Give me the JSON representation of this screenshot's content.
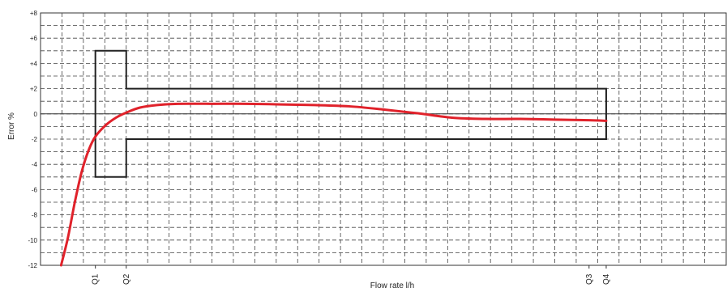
{
  "chart_data": {
    "type": "line",
    "title": "",
    "xlabel": "Flow rate l/h",
    "ylabel": "Error %",
    "ylim": [
      -12,
      8
    ],
    "yticks": [
      {
        "value": 8,
        "label": "+8"
      },
      {
        "value": 6,
        "label": "+6"
      },
      {
        "value": 4,
        "label": "+4"
      },
      {
        "value": 2,
        "label": "+2"
      },
      {
        "value": 0,
        "label": "0"
      },
      {
        "value": -2,
        "label": "-2"
      },
      {
        "value": -4,
        "label": "-4"
      },
      {
        "value": -6,
        "label": "-6"
      },
      {
        "value": -8,
        "label": "-8"
      },
      {
        "value": -10,
        "label": "-10"
      },
      {
        "value": -12,
        "label": "-12"
      }
    ],
    "flow_markers": [
      {
        "label": "Q1",
        "x": 1.6
      },
      {
        "label": "Q2",
        "x": 2.5
      },
      {
        "label": "Q3",
        "x": 16.0
      },
      {
        "label": "Q4",
        "x": 16.5
      }
    ],
    "x_range": [
      0,
      20
    ],
    "grid": true,
    "tolerance_envelope": {
      "lower_zone_limit": 5,
      "upper_zone_limit": 2
    },
    "series": [
      {
        "color": "#e0222b",
        "points": [
          [
            0.6,
            -12.0
          ],
          [
            0.8,
            -9.8
          ],
          [
            1.0,
            -7.0
          ],
          [
            1.2,
            -4.6
          ],
          [
            1.4,
            -2.9
          ],
          [
            1.6,
            -1.8
          ],
          [
            1.9,
            -0.9
          ],
          [
            2.2,
            -0.3
          ],
          [
            2.5,
            0.1
          ],
          [
            2.9,
            0.5
          ],
          [
            3.4,
            0.7
          ],
          [
            4.0,
            0.8
          ],
          [
            5.0,
            0.8
          ],
          [
            6.0,
            0.8
          ],
          [
            7.0,
            0.75
          ],
          [
            8.0,
            0.7
          ],
          [
            9.0,
            0.6
          ],
          [
            10.0,
            0.35
          ],
          [
            11.0,
            0.05
          ],
          [
            12.0,
            -0.3
          ],
          [
            13.0,
            -0.4
          ],
          [
            14.0,
            -0.4
          ],
          [
            15.0,
            -0.45
          ],
          [
            16.0,
            -0.5
          ],
          [
            16.5,
            -0.55
          ]
        ]
      }
    ],
    "envelope_color": "#222222"
  }
}
